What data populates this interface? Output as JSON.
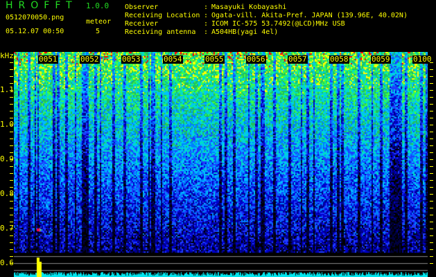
{
  "header": {
    "app_title": "HROFFT",
    "version": "1.0.0",
    "filename": "0512070050.png",
    "datetime": "05.12.07 00:50",
    "meteor_label": "meteor",
    "meteor_count": "5"
  },
  "info": [
    {
      "label": "Observer",
      "value": "Masayuki Kobayashi"
    },
    {
      "label": "Receiving Location",
      "value": "Ogata-vill. Akita-Pref. JAPAN (139.96E, 40.02N)"
    },
    {
      "label": "Receiver",
      "value": "ICOM IC-575 53.7492(@LCD)MHz USB"
    },
    {
      "label": "Receiving antenna",
      "value": "A504HB(yagi 4el)"
    }
  ],
  "axis": {
    "unit": "kHz",
    "y_ticks": [
      "1.1",
      "1.0",
      "0.9",
      "0.8",
      "0.7",
      "0.6"
    ],
    "time_labels": [
      "0051",
      "0052",
      "0053",
      "0054",
      "0055",
      "0056",
      "0057",
      "0058",
      "0059",
      "0100"
    ]
  },
  "colors": {
    "text": "#ffff00",
    "title": "#22dd22",
    "counter": "#00e5ee",
    "counter_peak": "#ffff00"
  }
}
